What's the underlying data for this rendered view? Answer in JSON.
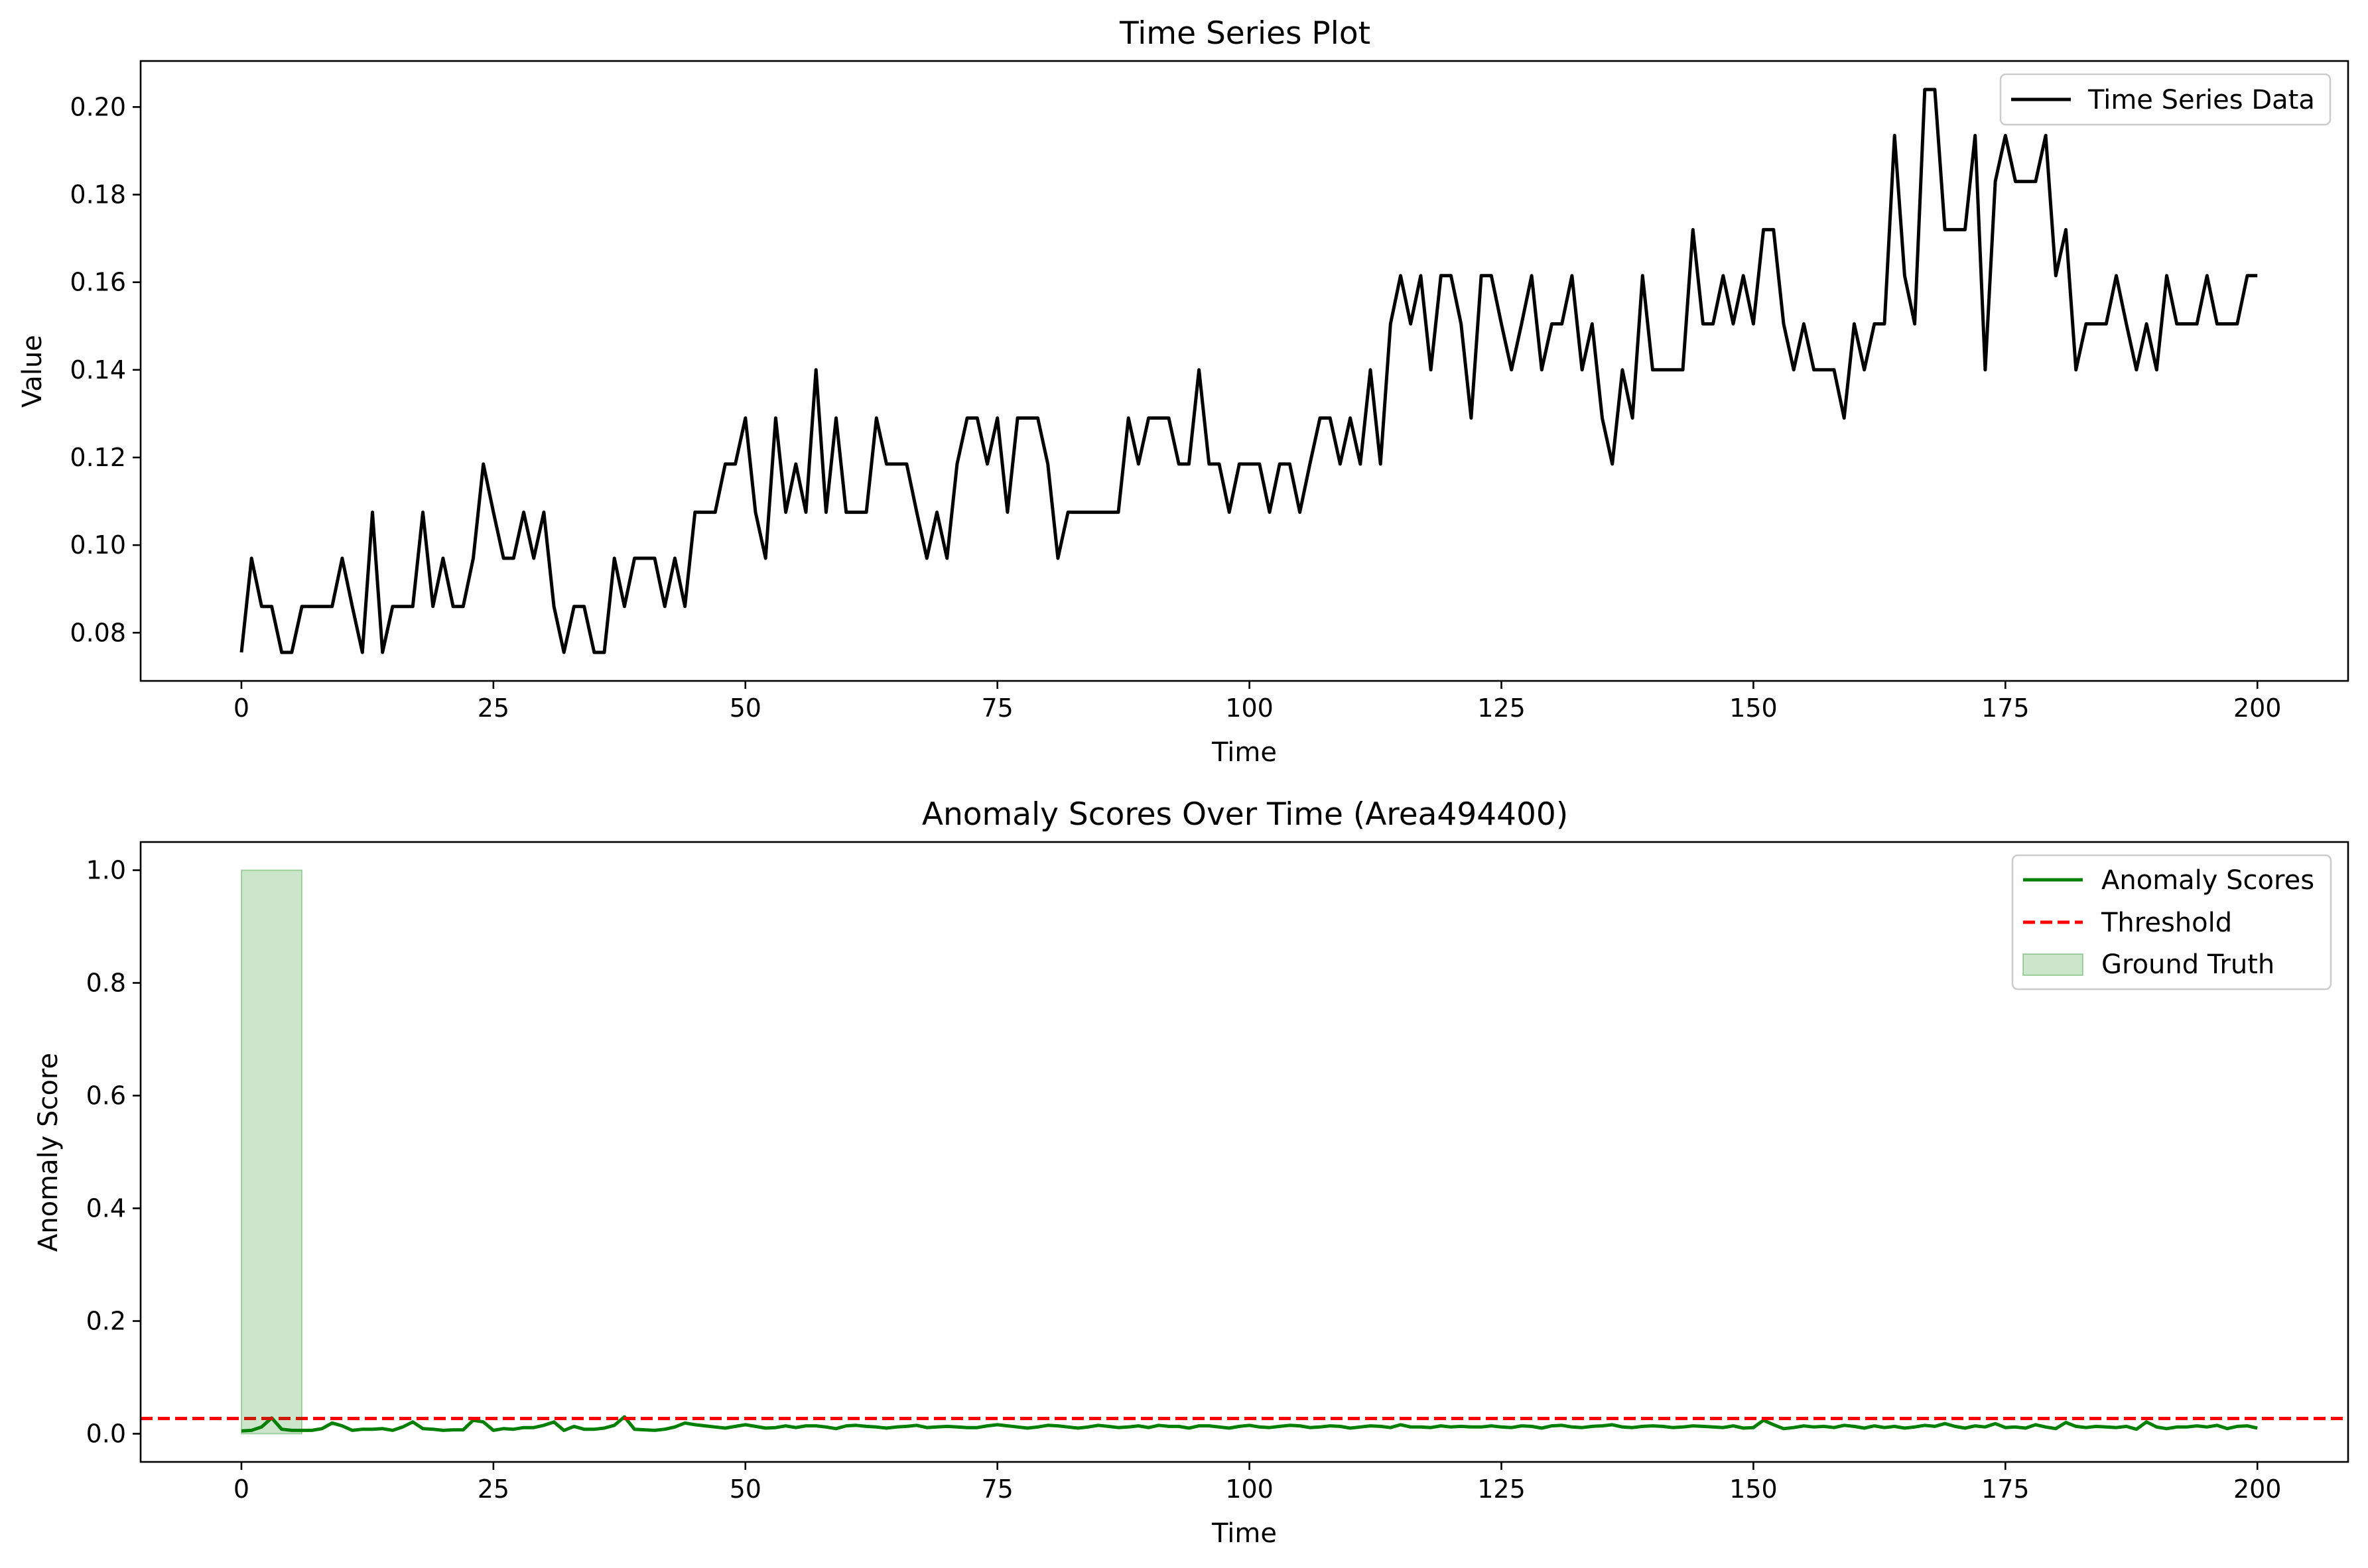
{
  "chart_data": [
    {
      "type": "line",
      "title": "Time Series Plot",
      "xlabel": "Time",
      "ylabel": "Value",
      "xlim": [
        -10,
        209
      ],
      "ylim": [
        0.069,
        0.2105
      ],
      "xticks": [
        0,
        25,
        50,
        75,
        100,
        125,
        150,
        175,
        200
      ],
      "yticks": [
        0.08,
        0.1,
        0.12,
        0.14,
        0.16,
        0.18,
        0.2
      ],
      "ytick_labels": [
        "0.08",
        "0.10",
        "0.12",
        "0.14",
        "0.16",
        "0.18",
        "0.20"
      ],
      "legend_position": "top-right",
      "grid": false,
      "series": [
        {
          "name": "Time Series Data",
          "color": "#000000",
          "values": [
            0.0755,
            0.097,
            0.086,
            0.086,
            0.0755,
            0.0755,
            0.086,
            0.086,
            0.086,
            0.086,
            0.097,
            0.086,
            0.0755,
            0.1075,
            0.0755,
            0.086,
            0.086,
            0.086,
            0.1075,
            0.086,
            0.097,
            0.086,
            0.086,
            0.097,
            0.1185,
            0.1075,
            0.097,
            0.097,
            0.1075,
            0.097,
            0.1075,
            0.086,
            0.0755,
            0.086,
            0.086,
            0.0755,
            0.0755,
            0.097,
            0.086,
            0.097,
            0.097,
            0.097,
            0.086,
            0.097,
            0.086,
            0.1075,
            0.1075,
            0.1075,
            0.1185,
            0.1185,
            0.129,
            0.1075,
            0.097,
            0.129,
            0.1075,
            0.1185,
            0.1075,
            0.14,
            0.1075,
            0.129,
            0.1075,
            0.1075,
            0.1075,
            0.129,
            0.1185,
            0.1185,
            0.1185,
            0.1075,
            0.097,
            0.1075,
            0.097,
            0.1185,
            0.129,
            0.129,
            0.1185,
            0.129,
            0.1075,
            0.129,
            0.129,
            0.129,
            0.1185,
            0.097,
            0.1075,
            0.1075,
            0.1075,
            0.1075,
            0.1075,
            0.1075,
            0.129,
            0.1185,
            0.129,
            0.129,
            0.129,
            0.1185,
            0.1185,
            0.14,
            0.1185,
            0.1185,
            0.1075,
            0.1185,
            0.1185,
            0.1185,
            0.1075,
            0.1185,
            0.1185,
            0.1075,
            0.1185,
            0.129,
            0.129,
            0.1185,
            0.129,
            0.1185,
            0.14,
            0.1185,
            0.1505,
            0.1615,
            0.1505,
            0.1615,
            0.14,
            0.1615,
            0.1615,
            0.1505,
            0.129,
            0.1615,
            0.1615,
            0.1505,
            0.14,
            0.1505,
            0.1615,
            0.14,
            0.1505,
            0.1505,
            0.1615,
            0.14,
            0.1505,
            0.129,
            0.1185,
            0.14,
            0.129,
            0.1615,
            0.14,
            0.14,
            0.14,
            0.14,
            0.172,
            0.1505,
            0.1505,
            0.1615,
            0.1505,
            0.1615,
            0.1505,
            0.172,
            0.172,
            0.1505,
            0.14,
            0.1505,
            0.14,
            0.14,
            0.14,
            0.129,
            0.1505,
            0.14,
            0.1505,
            0.1505,
            0.1935,
            0.1615,
            0.1505,
            0.204,
            0.204,
            0.172,
            0.172,
            0.172,
            0.1935,
            0.14,
            0.183,
            0.1935,
            0.183,
            0.183,
            0.183,
            0.1935,
            0.1615,
            0.172,
            0.14,
            0.1505,
            0.1505,
            0.1505,
            0.1615,
            0.1505,
            0.14,
            0.1505,
            0.14,
            0.1615,
            0.1505,
            0.1505,
            0.1505,
            0.1615,
            0.1505,
            0.1505,
            0.1505,
            0.1615,
            0.1615
          ]
        }
      ]
    },
    {
      "type": "line",
      "title": "Anomaly Scores Over Time (Area494400)",
      "xlabel": "Time",
      "ylabel": "Anomaly Score",
      "xlim": [
        -10,
        209
      ],
      "ylim": [
        -0.05,
        1.05
      ],
      "xticks": [
        0,
        25,
        50,
        75,
        100,
        125,
        150,
        175,
        200
      ],
      "yticks": [
        0.0,
        0.2,
        0.4,
        0.6,
        0.8,
        1.0
      ],
      "ytick_labels": [
        "0.0",
        "0.2",
        "0.4",
        "0.6",
        "0.8",
        "1.0"
      ],
      "legend_position": "top-right",
      "grid": false,
      "series": [
        {
          "name": "Anomaly Scores",
          "color": "#008000",
          "values": [
            0.005,
            0.006,
            0.012,
            0.028,
            0.008,
            0.006,
            0.006,
            0.006,
            0.009,
            0.019,
            0.014,
            0.006,
            0.008,
            0.008,
            0.009,
            0.006,
            0.012,
            0.021,
            0.009,
            0.008,
            0.006,
            0.007,
            0.007,
            0.024,
            0.021,
            0.006,
            0.009,
            0.008,
            0.011,
            0.011,
            0.015,
            0.021,
            0.006,
            0.013,
            0.008,
            0.008,
            0.01,
            0.015,
            0.03,
            0.008,
            0.007,
            0.006,
            0.008,
            0.012,
            0.019,
            0.016,
            0.014,
            0.012,
            0.01,
            0.013,
            0.016,
            0.013,
            0.01,
            0.011,
            0.014,
            0.011,
            0.014,
            0.014,
            0.012,
            0.009,
            0.014,
            0.015,
            0.013,
            0.012,
            0.01,
            0.012,
            0.013,
            0.015,
            0.011,
            0.012,
            0.013,
            0.012,
            0.011,
            0.011,
            0.014,
            0.016,
            0.014,
            0.012,
            0.01,
            0.012,
            0.015,
            0.014,
            0.012,
            0.01,
            0.012,
            0.015,
            0.013,
            0.011,
            0.012,
            0.014,
            0.011,
            0.015,
            0.013,
            0.013,
            0.01,
            0.014,
            0.014,
            0.012,
            0.01,
            0.013,
            0.015,
            0.012,
            0.011,
            0.013,
            0.015,
            0.014,
            0.011,
            0.012,
            0.014,
            0.013,
            0.01,
            0.012,
            0.014,
            0.013,
            0.011,
            0.016,
            0.012,
            0.012,
            0.011,
            0.014,
            0.012,
            0.013,
            0.012,
            0.012,
            0.014,
            0.012,
            0.011,
            0.014,
            0.013,
            0.01,
            0.014,
            0.015,
            0.012,
            0.011,
            0.013,
            0.014,
            0.016,
            0.012,
            0.011,
            0.013,
            0.014,
            0.013,
            0.011,
            0.012,
            0.014,
            0.013,
            0.012,
            0.011,
            0.014,
            0.01,
            0.011,
            0.024,
            0.016,
            0.009,
            0.011,
            0.014,
            0.012,
            0.013,
            0.011,
            0.015,
            0.013,
            0.01,
            0.014,
            0.011,
            0.013,
            0.01,
            0.012,
            0.015,
            0.013,
            0.018,
            0.013,
            0.01,
            0.014,
            0.012,
            0.018,
            0.011,
            0.012,
            0.01,
            0.016,
            0.012,
            0.009,
            0.02,
            0.013,
            0.011,
            0.013,
            0.012,
            0.011,
            0.013,
            0.008,
            0.021,
            0.012,
            0.009,
            0.012,
            0.012,
            0.014,
            0.012,
            0.015,
            0.009,
            0.013,
            0.014,
            0.01
          ]
        },
        {
          "name": "Threshold",
          "color": "#ff0000",
          "style": "dashed",
          "value": 0.027
        },
        {
          "name": "Ground Truth",
          "color": "#008000",
          "type": "shaded-span",
          "x_range": [
            0,
            6
          ],
          "y_range": [
            0,
            1
          ]
        }
      ]
    }
  ]
}
